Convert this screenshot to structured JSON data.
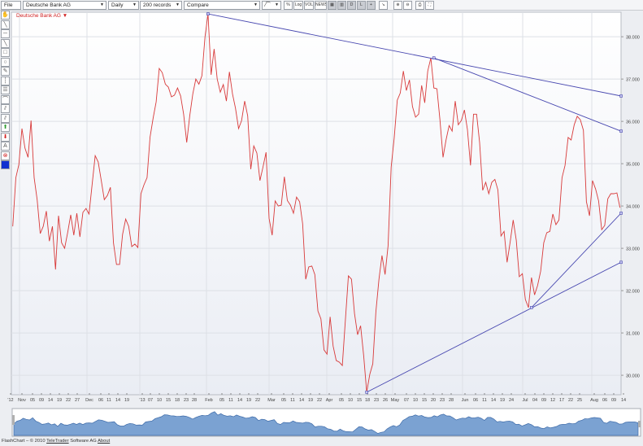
{
  "toolbar": {
    "file_label": "File",
    "instrument": "Deutsche Bank AG",
    "interval": "Daily",
    "records": "200 records",
    "compare": "Compare",
    "chart_type_glyph": "⁄⁀",
    "buttons": [
      {
        "name": "percent-button",
        "label": "%"
      },
      {
        "name": "log-button",
        "label": "Log"
      },
      {
        "name": "volume-button",
        "label": "VOL"
      },
      {
        "name": "news-button",
        "label": "NEWS"
      },
      {
        "name": "grid-button",
        "label": "▦"
      },
      {
        "name": "bars-button",
        "label": "▥"
      },
      {
        "name": "d-button",
        "label": "D"
      },
      {
        "name": "l-button",
        "label": "L"
      },
      {
        "name": "crosshair-button",
        "label": "+"
      },
      {
        "name": "trend-button",
        "label": "↘"
      },
      {
        "name": "zoom-in-button",
        "label": "⊕"
      },
      {
        "name": "zoom-out-button",
        "label": "⊖"
      },
      {
        "name": "print-button",
        "label": "⎙"
      },
      {
        "name": "fullscreen-button",
        "label": "⛶"
      }
    ]
  },
  "tools": [
    {
      "name": "hand-icon",
      "glyph": "✋"
    },
    {
      "name": "diagonal-line-icon",
      "glyph": "╲"
    },
    {
      "name": "horizontal-line-icon",
      "glyph": "─"
    },
    {
      "name": "trend-line-icon",
      "glyph": "╲"
    },
    {
      "name": "rectangle-icon",
      "glyph": "□"
    },
    {
      "name": "circle-icon",
      "glyph": "○"
    },
    {
      "name": "pen-icon",
      "glyph": "✎"
    },
    {
      "name": "vertical-lines-icon",
      "glyph": "┆"
    },
    {
      "name": "horizontal-lines-icon",
      "glyph": "☰"
    },
    {
      "name": "arc-icon",
      "glyph": "⌒"
    },
    {
      "name": "parallel-channel-icon",
      "glyph": "⫽"
    },
    {
      "name": "fibonacci-icon",
      "glyph": "⫽"
    },
    {
      "name": "buy-arrow-icon",
      "glyph": "⬆"
    },
    {
      "name": "sell-arrow-icon",
      "glyph": "⬇"
    },
    {
      "name": "text-icon",
      "glyph": "A"
    },
    {
      "name": "delete-icon",
      "glyph": "⊗"
    },
    {
      "name": "color-icon",
      "glyph": ""
    }
  ],
  "legend": {
    "label": "Deutsche Bank AG",
    "arrow": "▼"
  },
  "colors": {
    "price": "#d83a3a",
    "trend": "#4848b0",
    "nav_fill": "#7ba2d2",
    "nav_stroke": "#3d6aa8",
    "buy": "#2a9a2a",
    "sell": "#d02020",
    "swatch": "#1030d0"
  },
  "chart_data": {
    "type": "line",
    "title": "",
    "ylim": [
      29.54,
      38.58
    ],
    "y_ticks": [
      "30.000",
      "31.000",
      "32.000",
      "33.000",
      "34.000",
      "35.000",
      "36.000",
      "37.000",
      "38.000"
    ],
    "x_tick_labels": [
      "'12",
      "Nov",
      "05",
      "09",
      "14",
      "19",
      "22",
      "27",
      "Dec",
      "06",
      "11",
      "14",
      "19",
      "'13",
      "07",
      "10",
      "15",
      "18",
      "23",
      "28",
      "Feb",
      "05",
      "11",
      "14",
      "19",
      "22",
      "Mar",
      "05",
      "11",
      "14",
      "19",
      "22",
      "Apr",
      "05",
      "10",
      "15",
      "18",
      "23",
      "26",
      "May",
      "07",
      "10",
      "15",
      "20",
      "23",
      "28",
      "Jun",
      "06",
      "11",
      "14",
      "19",
      "24",
      "Jul",
      "04",
      "09",
      "12",
      "17",
      "22",
      "25",
      "Aug",
      "06",
      "09",
      "14"
    ],
    "grid": true,
    "series": [
      {
        "values": [
          33.52,
          34.67,
          34.98,
          35.83,
          35.37,
          35.15,
          36.02,
          34.67,
          34.15,
          33.35,
          33.52,
          33.88,
          33.17,
          33.52,
          32.5,
          33.77,
          33.13,
          33.0,
          33.38,
          33.79,
          33.31,
          33.83,
          33.27,
          33.85,
          33.94,
          33.81,
          34.5,
          35.19,
          35.04,
          34.6,
          34.15,
          34.25,
          34.44,
          33.13,
          32.62,
          32.62,
          33.33,
          33.69,
          33.52,
          33.04,
          33.1,
          33.02,
          34.29,
          34.5,
          34.67,
          35.63,
          36.08,
          36.46,
          37.25,
          37.15,
          36.88,
          36.81,
          36.58,
          36.62,
          36.79,
          36.6,
          36.17,
          35.5,
          36.13,
          36.65,
          37.0,
          36.88,
          37.08,
          38.0,
          38.54,
          37.1,
          37.71,
          37.0,
          36.69,
          36.87,
          36.48,
          37.17,
          36.65,
          36.31,
          35.83,
          36.02,
          36.48,
          36.13,
          34.87,
          35.42,
          35.25,
          34.6,
          34.92,
          35.27,
          33.71,
          33.31,
          34.12,
          34.0,
          34.02,
          34.69,
          34.13,
          34.02,
          33.83,
          34.21,
          34.1,
          33.58,
          32.27,
          32.56,
          32.58,
          32.38,
          31.52,
          31.33,
          30.6,
          30.5,
          31.38,
          30.69,
          30.35,
          30.31,
          30.23,
          31.31,
          32.35,
          32.27,
          31.46,
          30.96,
          31.17,
          30.46,
          29.6,
          30.02,
          30.27,
          31.5,
          32.27,
          32.83,
          32.38,
          33.06,
          34.92,
          35.6,
          36.5,
          36.67,
          37.19,
          36.73,
          36.98,
          36.35,
          36.1,
          36.17,
          36.85,
          36.44,
          37.19,
          37.5,
          36.79,
          36.77,
          36.04,
          35.15,
          35.56,
          35.9,
          35.77,
          36.48,
          35.92,
          36.02,
          36.27,
          35.81,
          34.96,
          36.17,
          36.17,
          35.5,
          34.37,
          34.56,
          34.29,
          34.56,
          34.63,
          34.38,
          33.29,
          33.4,
          32.67,
          33.15,
          33.67,
          33.19,
          32.33,
          32.4,
          31.79,
          31.6,
          32.31,
          31.9,
          32.12,
          32.46,
          33.13,
          33.37,
          33.4,
          33.81,
          33.56,
          33.67,
          34.67,
          34.96,
          35.62,
          35.56,
          35.92,
          36.12,
          36.04,
          35.79,
          34.1,
          33.77,
          34.6,
          34.4,
          34.12,
          33.44,
          33.54,
          34.17,
          34.29,
          34.29,
          34.31,
          33.96
        ]
      }
    ],
    "trendlines": [
      {
        "from": {
          "record": 64,
          "value": 38.54
        },
        "to": {
          "record": 199,
          "value": 36.6
        }
      },
      {
        "from": {
          "record": 138,
          "value": 37.5
        },
        "to": {
          "record": 199,
          "value": 35.77
        }
      },
      {
        "from": {
          "record": 116,
          "value": 29.6
        },
        "to": {
          "record": 199,
          "value": 32.67
        }
      },
      {
        "from": {
          "record": 170,
          "value": 31.6
        },
        "to": {
          "record": 199,
          "value": 33.83
        }
      }
    ]
  },
  "footer": {
    "prefix": "FlashChart – © 2010",
    "company": "TeleTrader",
    "suffix": "Software AG",
    "about": "About"
  }
}
